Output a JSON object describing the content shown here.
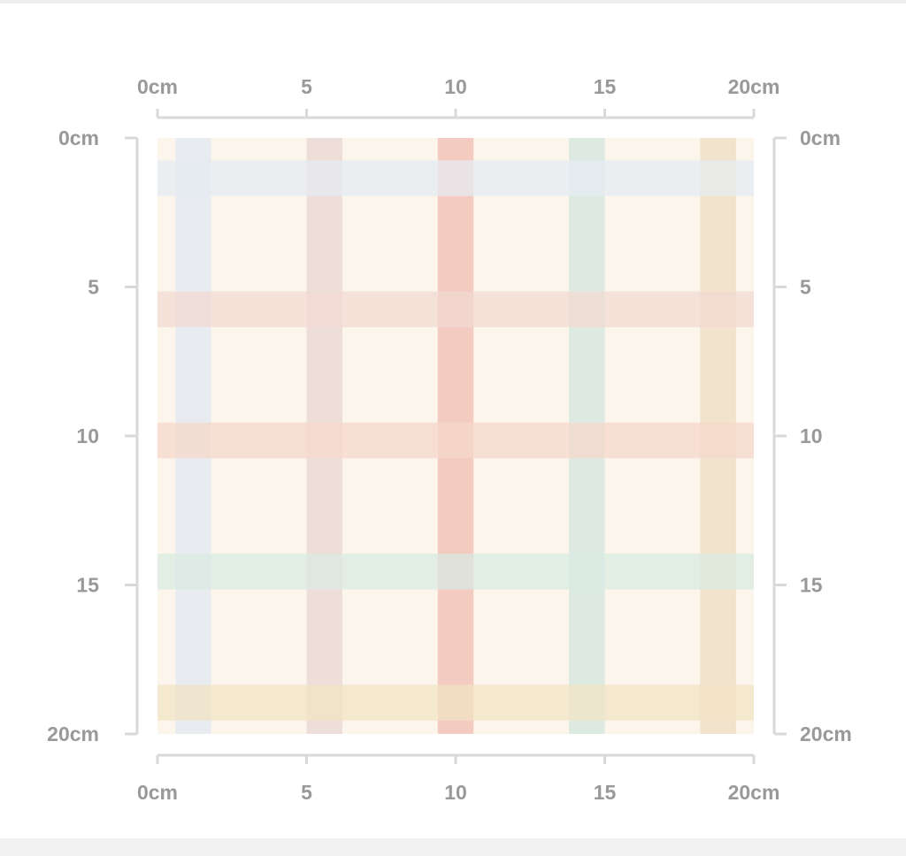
{
  "units": {
    "min": 0,
    "max": 20,
    "unit_suffix": "cm"
  },
  "ruler_labels": {
    "top": [
      "0cm",
      "5",
      "10",
      "15",
      "20cm"
    ],
    "bottom": [
      "0cm",
      "5",
      "10",
      "15",
      "20cm"
    ],
    "left": [
      "0cm",
      "5",
      "10",
      "15",
      "20cm"
    ],
    "right": [
      "0cm",
      "5",
      "10",
      "15",
      "20cm"
    ]
  },
  "tick_values": [
    0,
    5,
    10,
    15,
    20
  ],
  "fabric": {
    "background_color": "#fbf5ec",
    "vertical_stripes": [
      {
        "start": 0.6,
        "end": 1.8,
        "color": "#e6ebf1"
      },
      {
        "start": 5.0,
        "end": 6.2,
        "color": "#ebdcd7"
      },
      {
        "start": 9.4,
        "end": 10.6,
        "color": "#f3c7bb"
      },
      {
        "start": 13.8,
        "end": 15.0,
        "color": "#d9e9e1"
      },
      {
        "start": 18.2,
        "end": 19.4,
        "color": "#efe1c9"
      }
    ],
    "horizontal_stripes": [
      {
        "start": 0.75,
        "end": 1.95,
        "color": "#e6ebf1"
      },
      {
        "start": 5.15,
        "end": 6.35,
        "color": "#f2d9d2"
      },
      {
        "start": 9.55,
        "end": 10.75,
        "color": "#f5d8cb"
      },
      {
        "start": 13.95,
        "end": 15.15,
        "color": "#d9e9e1"
      },
      {
        "start": 18.35,
        "end": 19.55,
        "color": "#f1e3c4"
      }
    ]
  }
}
